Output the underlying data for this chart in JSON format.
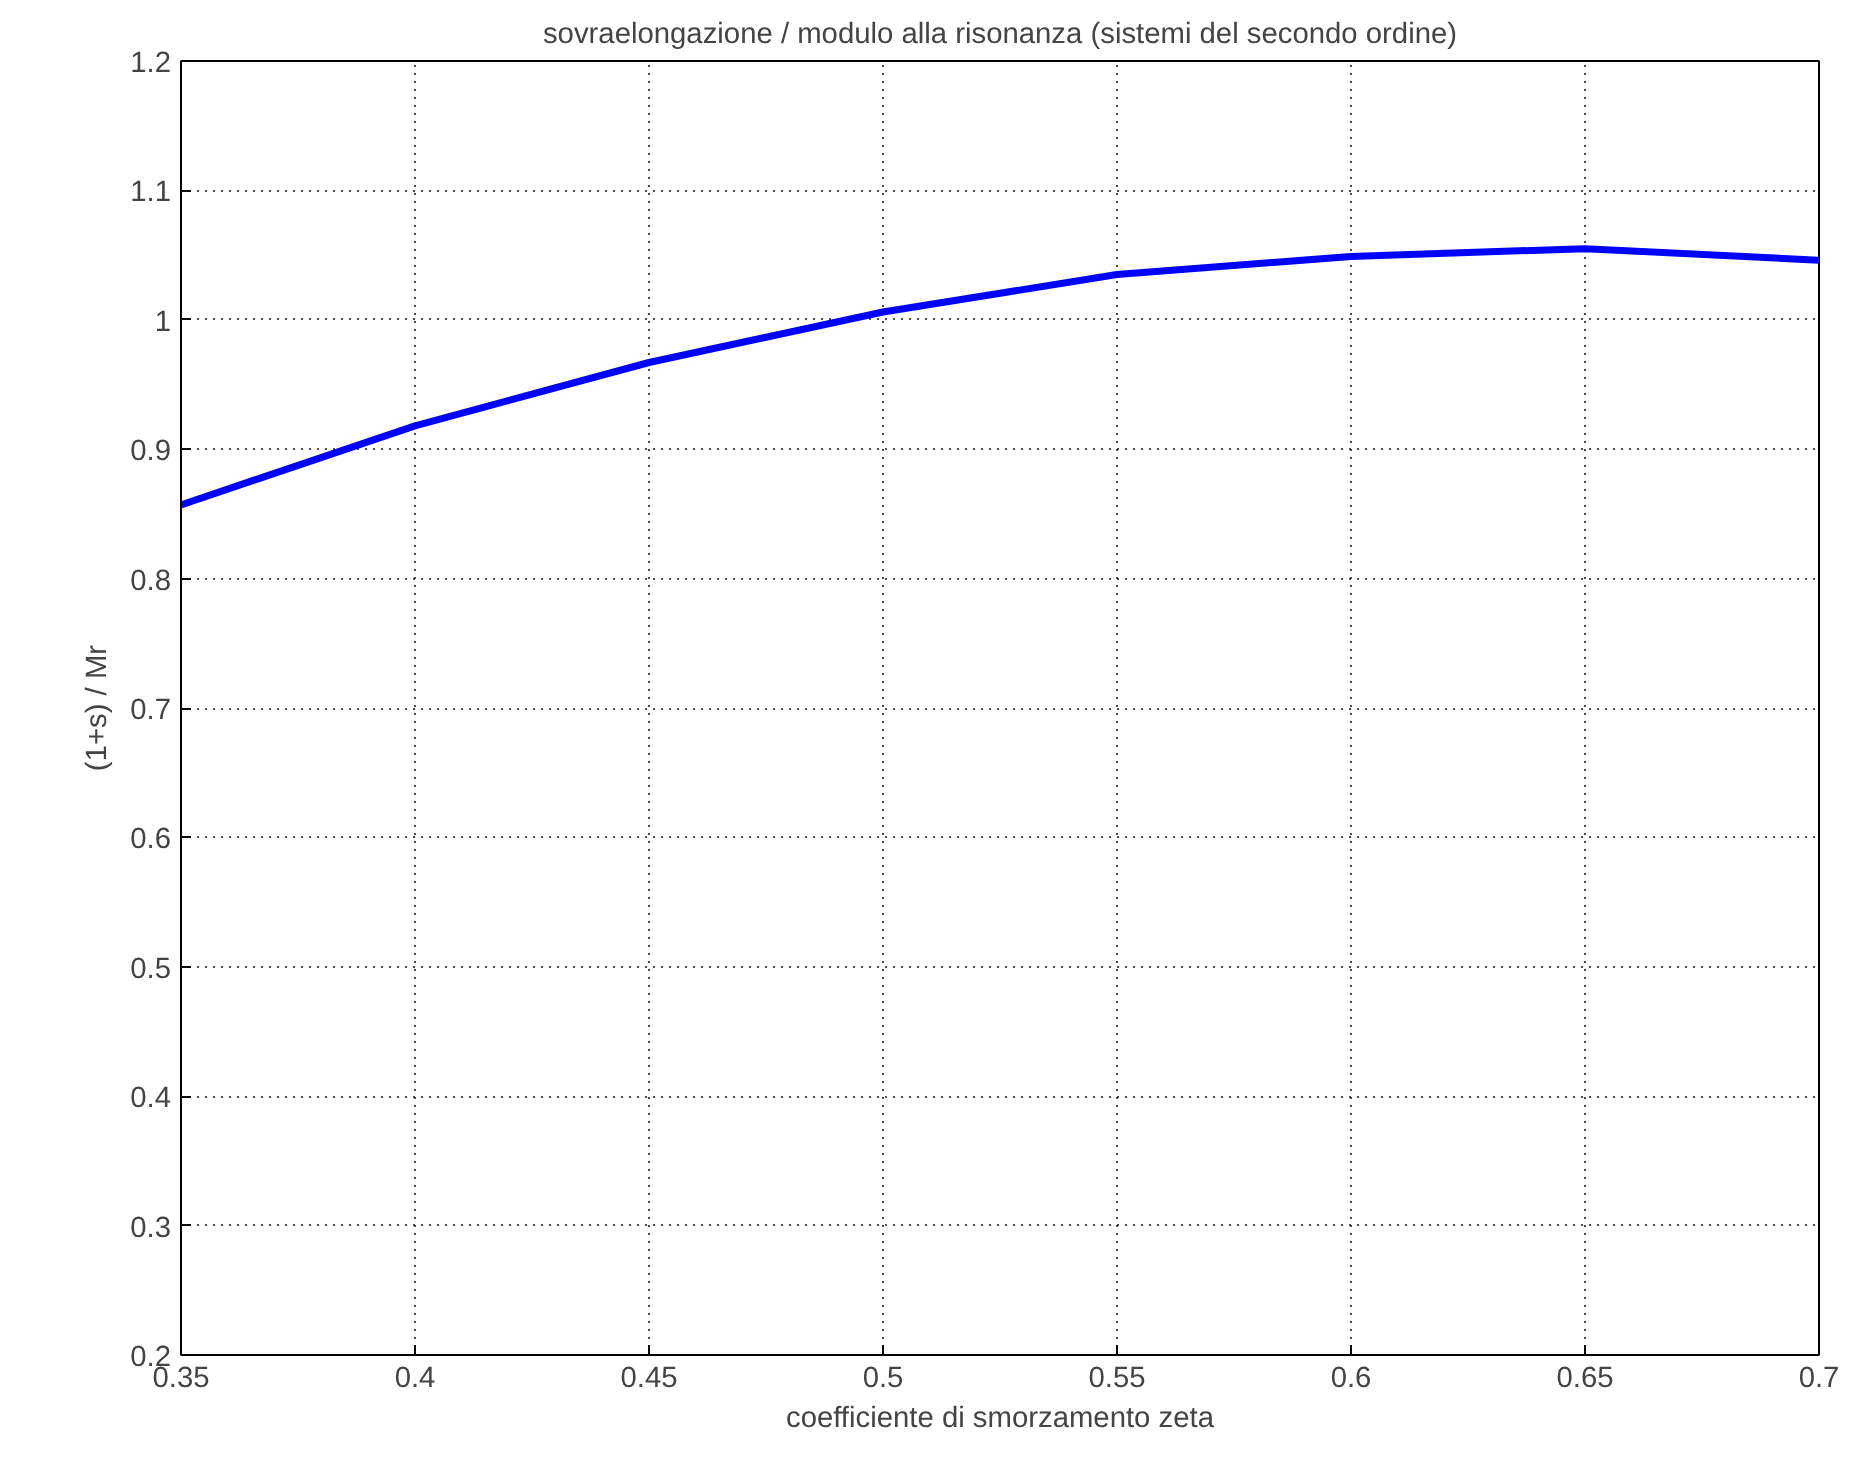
{
  "chart_data": {
    "type": "line",
    "title": "sovraelongazione / modulo alla risonanza (sistemi del secondo ordine)",
    "xlabel": "coefficiente di smorzamento zeta",
    "ylabel": "(1+s) / Mr",
    "x": [
      0.35,
      0.4,
      0.45,
      0.5,
      0.55,
      0.6,
      0.65,
      0.7
    ],
    "series": [
      {
        "color": "#0000ff",
        "values": [
          0.857,
          0.918,
          0.967,
          1.006,
          1.035,
          1.049,
          1.055,
          1.046
        ]
      }
    ],
    "xlim": [
      0.35,
      0.7
    ],
    "xticks": [
      0.35,
      0.4,
      0.45,
      0.5,
      0.55,
      0.6,
      0.65,
      0.7
    ],
    "ylim": [
      0.2,
      1.2
    ],
    "yticks": [
      0.2,
      0.3,
      0.4,
      0.5,
      0.6,
      0.7,
      0.8,
      0.9,
      1,
      1.1,
      1.2
    ],
    "grid": true,
    "line_style": "solid",
    "marker": "none"
  }
}
